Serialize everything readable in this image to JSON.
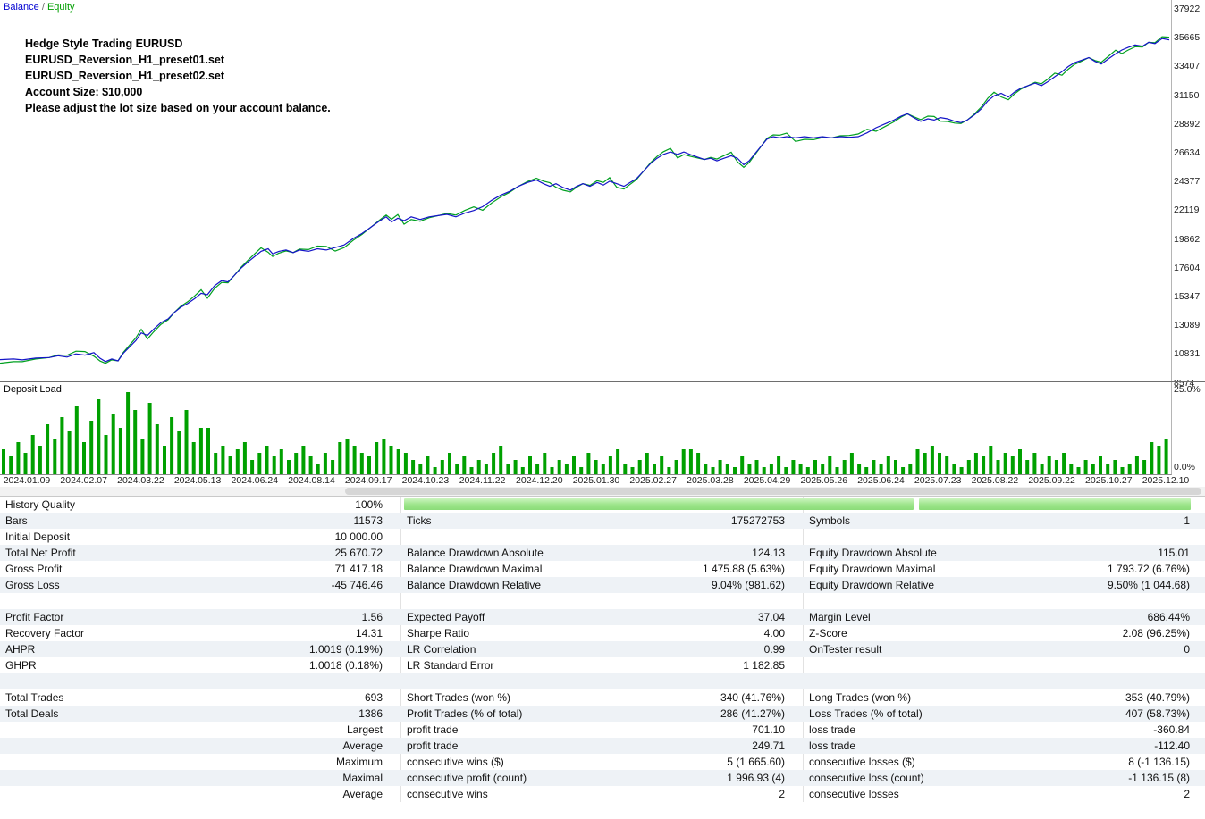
{
  "legend": {
    "balance_label": "Balance",
    "separator": " / ",
    "equity_label": "Equity"
  },
  "chart": {
    "annotation_lines": [
      "Hedge Style Trading EURUSD",
      "EURUSD_Reversion_H1_preset01.set",
      "EURUSD_Reversion_H1_preset02.set",
      "Account Size: $10,000",
      "Please adjust the lot size based on your account balance."
    ],
    "balance_color": "#1414c8",
    "equity_color": "#00a020",
    "y_ticks": [
      "37922",
      "35665",
      "33407",
      "31150",
      "28892",
      "26634",
      "24377",
      "22119",
      "19862",
      "17604",
      "15347",
      "13089",
      "10831",
      "8574"
    ]
  },
  "deposit_load": {
    "title": "Deposit Load",
    "bar_color": "#00a000",
    "ytick_max": "25.0%",
    "ytick_min": "0.0%"
  },
  "chart_data": [
    {
      "type": "line",
      "title": "Balance / Equity",
      "ylabel": "Account value",
      "ylim": [
        8574,
        37922
      ],
      "series": [
        {
          "name": "Balance",
          "color": "#1414c8",
          "points": [
            [
              0,
              10400
            ],
            [
              15,
              10450
            ],
            [
              25,
              10380
            ],
            [
              40,
              10520
            ],
            [
              55,
              10560
            ],
            [
              65,
              10700
            ],
            [
              75,
              10600
            ],
            [
              85,
              10850
            ],
            [
              95,
              10750
            ],
            [
              105,
              10950
            ],
            [
              112,
              10500
            ],
            [
              118,
              10250
            ],
            [
              125,
              10450
            ],
            [
              132,
              10300
            ],
            [
              138,
              10900
            ],
            [
              145,
              11400
            ],
            [
              152,
              11900
            ],
            [
              158,
              12500
            ],
            [
              165,
              12300
            ],
            [
              172,
              12800
            ],
            [
              180,
              13300
            ],
            [
              188,
              13600
            ],
            [
              195,
              14100
            ],
            [
              202,
              14500
            ],
            [
              210,
              14800
            ],
            [
              218,
              15200
            ],
            [
              225,
              15600
            ],
            [
              232,
              15500
            ],
            [
              240,
              16200
            ],
            [
              248,
              16600
            ],
            [
              255,
              16500
            ],
            [
              262,
              17000
            ],
            [
              270,
              17600
            ],
            [
              278,
              18100
            ],
            [
              285,
              18500
            ],
            [
              292,
              18900
            ],
            [
              300,
              19100
            ],
            [
              305,
              18700
            ],
            [
              312,
              18900
            ],
            [
              320,
              19000
            ],
            [
              328,
              18800
            ],
            [
              335,
              19000
            ],
            [
              345,
              18900
            ],
            [
              355,
              19100
            ],
            [
              365,
              19000
            ],
            [
              375,
              19200
            ],
            [
              385,
              19400
            ],
            [
              395,
              19900
            ],
            [
              405,
              20300
            ],
            [
              415,
              20800
            ],
            [
              425,
              21300
            ],
            [
              432,
              21600
            ],
            [
              438,
              21200
            ],
            [
              445,
              21500
            ],
            [
              452,
              21300
            ],
            [
              460,
              21600
            ],
            [
              470,
              21400
            ],
            [
              480,
              21600
            ],
            [
              490,
              21700
            ],
            [
              500,
              21800
            ],
            [
              510,
              21600
            ],
            [
              520,
              21900
            ],
            [
              530,
              22100
            ],
            [
              540,
              22400
            ],
            [
              550,
              22900
            ],
            [
              560,
              23300
            ],
            [
              570,
              23600
            ],
            [
              580,
              24000
            ],
            [
              590,
              24300
            ],
            [
              600,
              24500
            ],
            [
              608,
              24200
            ],
            [
              615,
              24000
            ],
            [
              622,
              24200
            ],
            [
              630,
              23900
            ],
            [
              638,
              23700
            ],
            [
              645,
              24000
            ],
            [
              652,
              24200
            ],
            [
              660,
              24000
            ],
            [
              668,
              24300
            ],
            [
              675,
              24100
            ],
            [
              682,
              24400
            ],
            [
              690,
              24200
            ],
            [
              698,
              24000
            ],
            [
              705,
              24300
            ],
            [
              712,
              24600
            ],
            [
              720,
              25200
            ],
            [
              728,
              25800
            ],
            [
              735,
              26200
            ],
            [
              742,
              26500
            ],
            [
              750,
              26700
            ],
            [
              758,
              26500
            ],
            [
              765,
              26700
            ],
            [
              772,
              26500
            ],
            [
              780,
              26300
            ],
            [
              788,
              26100
            ],
            [
              795,
              26200
            ],
            [
              802,
              26000
            ],
            [
              810,
              26200
            ],
            [
              818,
              26400
            ],
            [
              825,
              26200
            ],
            [
              832,
              25700
            ],
            [
              838,
              26000
            ],
            [
              845,
              26600
            ],
            [
              852,
              27200
            ],
            [
              858,
              27700
            ],
            [
              865,
              27900
            ],
            [
              872,
              27800
            ],
            [
              880,
              27900
            ],
            [
              890,
              27800
            ],
            [
              900,
              27900
            ],
            [
              910,
              27800
            ],
            [
              920,
              27900
            ],
            [
              930,
              27800
            ],
            [
              940,
              27900
            ],
            [
              950,
              27850
            ],
            [
              960,
              27900
            ],
            [
              970,
              28200
            ],
            [
              980,
              28600
            ],
            [
              990,
              28900
            ],
            [
              1000,
              29200
            ],
            [
              1008,
              29500
            ],
            [
              1015,
              29700
            ],
            [
              1022,
              29400
            ],
            [
              1030,
              29100
            ],
            [
              1038,
              29300
            ],
            [
              1045,
              29200
            ],
            [
              1052,
              29400
            ],
            [
              1060,
              29300
            ],
            [
              1068,
              29100
            ],
            [
              1075,
              29000
            ],
            [
              1082,
              29200
            ],
            [
              1090,
              29600
            ],
            [
              1098,
              30100
            ],
            [
              1105,
              30700
            ],
            [
              1112,
              31100
            ],
            [
              1120,
              31300
            ],
            [
              1128,
              31000
            ],
            [
              1135,
              31400
            ],
            [
              1142,
              31700
            ],
            [
              1150,
              31900
            ],
            [
              1158,
              32100
            ],
            [
              1165,
              31900
            ],
            [
              1172,
              32200
            ],
            [
              1180,
              32600
            ],
            [
              1188,
              33000
            ],
            [
              1195,
              33400
            ],
            [
              1202,
              33700
            ],
            [
              1210,
              33900
            ],
            [
              1218,
              34100
            ],
            [
              1225,
              33800
            ],
            [
              1232,
              33600
            ],
            [
              1240,
              34000
            ],
            [
              1248,
              34400
            ],
            [
              1255,
              34700
            ],
            [
              1262,
              34900
            ],
            [
              1270,
              35100
            ],
            [
              1278,
              35000
            ],
            [
              1285,
              35300
            ],
            [
              1292,
              35200
            ],
            [
              1300,
              35600
            ],
            [
              1308,
              35500
            ]
          ]
        },
        {
          "name": "Equity",
          "color": "#00a020",
          "note": "tracks balance with small intrabar deviations"
        }
      ],
      "y_tick_labels": [
        "37922",
        "35665",
        "33407",
        "31150",
        "28892",
        "26634",
        "24377",
        "22119",
        "19862",
        "17604",
        "15347",
        "13089",
        "10831",
        "8574"
      ]
    },
    {
      "type": "bar",
      "title": "Deposit Load",
      "ylim_pct": [
        0,
        25
      ],
      "y_tick_labels": [
        "25.0%",
        "0.0%"
      ],
      "x_labels": [
        "2024.01.09",
        "2024.02.07",
        "2024.03.22",
        "2024.05.13",
        "2024.06.24",
        "2024.08.14",
        "2024.09.17",
        "2024.10.23",
        "2024.11.22",
        "2024.12.20",
        "2025.01.30",
        "2025.02.27",
        "2025.03.28",
        "2025.04.29",
        "2025.05.26",
        "2025.06.24",
        "2025.07.23",
        "2025.08.22",
        "2025.09.22",
        "2025.10.27",
        "2025.12.10"
      ],
      "values": [
        7,
        5,
        9,
        6,
        11,
        8,
        14,
        10,
        16,
        12,
        19,
        9,
        15,
        21,
        11,
        17,
        13,
        23,
        18,
        10,
        20,
        14,
        8,
        16,
        12,
        18,
        9,
        13,
        13,
        6,
        8,
        5,
        7,
        9,
        4,
        6,
        8,
        5,
        7,
        4,
        6,
        8,
        5,
        3,
        6,
        4,
        9,
        10,
        8,
        6,
        5,
        9,
        10,
        8,
        7,
        6,
        4,
        3,
        5,
        2,
        4,
        6,
        3,
        5,
        2,
        4,
        3,
        6,
        8,
        3,
        4,
        2,
        5,
        3,
        6,
        2,
        4,
        3,
        5,
        2,
        6,
        4,
        3,
        5,
        7,
        3,
        2,
        4,
        6,
        3,
        5,
        2,
        4,
        7,
        7,
        6,
        3,
        2,
        4,
        3,
        2,
        5,
        3,
        4,
        2,
        3,
        5,
        2,
        4,
        3,
        2,
        4,
        3,
        5,
        2,
        4,
        6,
        3,
        2,
        4,
        3,
        5,
        4,
        2,
        3,
        7,
        6,
        8,
        6,
        5,
        3,
        2,
        4,
        6,
        5,
        8,
        4,
        6,
        5,
        7,
        4,
        6,
        3,
        5,
        4,
        6,
        3,
        2,
        4,
        3,
        5,
        3,
        4,
        2,
        3,
        5,
        4,
        9,
        8,
        10
      ]
    }
  ],
  "stats": {
    "rows": [
      {
        "type": "quality",
        "c1l": "History Quality",
        "c1v": "100%",
        "c2l": "",
        "c2v": "",
        "c3l": "",
        "c3v": ""
      },
      {
        "type": "data",
        "c1l": "Bars",
        "c1v": "11573",
        "c2l": "Ticks",
        "c2v": "175272753",
        "c3l": "Symbols",
        "c3v": "1"
      },
      {
        "type": "data",
        "c1l": "Initial Deposit",
        "c1v": "10 000.00",
        "c2l": "",
        "c2v": "",
        "c3l": "",
        "c3v": ""
      },
      {
        "type": "data",
        "c1l": "Total Net Profit",
        "c1v": "25 670.72",
        "c2l": "Balance Drawdown Absolute",
        "c2v": "124.13",
        "c3l": "Equity Drawdown Absolute",
        "c3v": "115.01"
      },
      {
        "type": "data",
        "c1l": "Gross Profit",
        "c1v": "71 417.18",
        "c2l": "Balance Drawdown Maximal",
        "c2v": "1 475.88 (5.63%)",
        "c3l": "Equity Drawdown Maximal",
        "c3v": "1 793.72 (6.76%)"
      },
      {
        "type": "data",
        "c1l": "Gross Loss",
        "c1v": "-45 746.46",
        "c2l": "Balance Drawdown Relative",
        "c2v": "9.04% (981.62)",
        "c3l": "Equity Drawdown Relative",
        "c3v": "9.50% (1 044.68)"
      },
      {
        "type": "blank",
        "c1l": "",
        "c1v": "",
        "c2l": "",
        "c2v": "",
        "c3l": "",
        "c3v": ""
      },
      {
        "type": "data",
        "c1l": "Profit Factor",
        "c1v": "1.56",
        "c2l": "Expected Payoff",
        "c2v": "37.04",
        "c3l": "Margin Level",
        "c3v": "686.44%"
      },
      {
        "type": "data",
        "c1l": "Recovery Factor",
        "c1v": "14.31",
        "c2l": "Sharpe Ratio",
        "c2v": "4.00",
        "c3l": "Z-Score",
        "c3v": "2.08 (96.25%)"
      },
      {
        "type": "data",
        "c1l": "AHPR",
        "c1v": "1.0019 (0.19%)",
        "c2l": "LR Correlation",
        "c2v": "0.99",
        "c3l": "OnTester result",
        "c3v": "0"
      },
      {
        "type": "data",
        "c1l": "GHPR",
        "c1v": "1.0018 (0.18%)",
        "c2l": "LR Standard Error",
        "c2v": "1 182.85",
        "c3l": "",
        "c3v": ""
      },
      {
        "type": "blank",
        "c1l": "",
        "c1v": "",
        "c2l": "",
        "c2v": "",
        "c3l": "",
        "c3v": ""
      },
      {
        "type": "data",
        "c1l": "Total Trades",
        "c1v": "693",
        "c2l": "Short Trades (won %)",
        "c2v": "340 (41.76%)",
        "c3l": "Long Trades (won %)",
        "c3v": "353 (40.79%)"
      },
      {
        "type": "data",
        "c1l": "Total Deals",
        "c1v": "1386",
        "c2l": "Profit Trades (% of total)",
        "c2v": "286 (41.27%)",
        "c3l": "Loss Trades (% of total)",
        "c3v": "407 (58.73%)"
      },
      {
        "type": "data",
        "c1l": "",
        "c1v": "Largest",
        "c2l": "profit trade",
        "c2v": "701.10",
        "c3l": "loss trade",
        "c3v": "-360.84"
      },
      {
        "type": "data",
        "c1l": "",
        "c1v": "Average",
        "c2l": "profit trade",
        "c2v": "249.71",
        "c3l": "loss trade",
        "c3v": "-112.40"
      },
      {
        "type": "data",
        "c1l": "",
        "c1v": "Maximum",
        "c2l": "consecutive wins ($)",
        "c2v": "5 (1 665.60)",
        "c3l": "consecutive losses ($)",
        "c3v": "8 (-1 136.15)"
      },
      {
        "type": "data",
        "c1l": "",
        "c1v": "Maximal",
        "c2l": "consecutive profit (count)",
        "c2v": "1 996.93 (4)",
        "c3l": "consecutive loss (count)",
        "c3v": "-1 136.15 (8)"
      },
      {
        "type": "data",
        "c1l": "",
        "c1v": "Average",
        "c2l": "consecutive wins",
        "c2v": "2",
        "c3l": "consecutive losses",
        "c3v": "2"
      }
    ]
  }
}
